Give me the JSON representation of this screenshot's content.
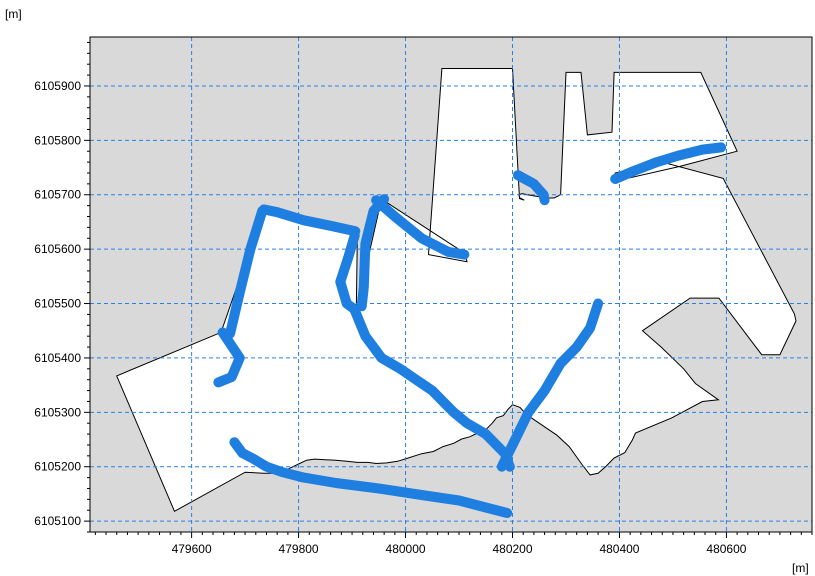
{
  "chart_data": {
    "type": "map",
    "x_unit": "[m]",
    "y_unit": "[m]",
    "xlim": [
      479410,
      480760
    ],
    "ylim": [
      6105080,
      6105990
    ],
    "x_ticks": [
      479600,
      479800,
      480000,
      480200,
      480400,
      480600
    ],
    "y_ticks": [
      6105100,
      6105200,
      6105300,
      6105400,
      6105500,
      6105600,
      6105700,
      6105800,
      6105900
    ],
    "x_minor_step": 20,
    "y_minor_step": 20,
    "grid": true,
    "colors": {
      "land": "#d9d9d9",
      "water": "#ffffff",
      "highlight": "#1e7fe0",
      "grid": "#2a7fe6",
      "outline": "#000000"
    },
    "water_polygon": [
      [
        479460,
        6105367
      ],
      [
        479655,
        6105447
      ],
      [
        479735,
        6105673
      ],
      [
        479910,
        6105635
      ],
      [
        479908,
        6105488
      ],
      [
        479955,
        6105692
      ],
      [
        480110,
        6105593
      ],
      [
        480115,
        6105577
      ],
      [
        480043,
        6105590
      ],
      [
        480068,
        6105932
      ],
      [
        480200,
        6105932
      ],
      [
        480213,
        6105693
      ],
      [
        480222,
        6105690
      ],
      [
        480213,
        6105695
      ],
      [
        480212,
        6105700
      ],
      [
        480218,
        6105702
      ],
      [
        480262,
        6105694
      ],
      [
        480278,
        6105694
      ],
      [
        480290,
        6105700
      ],
      [
        480300,
        6105925
      ],
      [
        480328,
        6105925
      ],
      [
        480340,
        6105810
      ],
      [
        480386,
        6105815
      ],
      [
        480390,
        6105925
      ],
      [
        480552,
        6105925
      ],
      [
        480620,
        6105780
      ],
      [
        480512,
        6105752
      ],
      [
        480392,
        6105725
      ],
      [
        480392,
        6105740
      ],
      [
        480480,
        6105760
      ],
      [
        480594,
        6105730
      ],
      [
        480727,
        6105481
      ],
      [
        480730,
        6105468
      ],
      [
        480700,
        6105406
      ],
      [
        480666,
        6105406
      ],
      [
        480586,
        6105510
      ],
      [
        480532,
        6105510
      ],
      [
        480443,
        6105450
      ],
      [
        480478,
        6105420
      ],
      [
        480520,
        6105380
      ],
      [
        480542,
        6105353
      ],
      [
        480585,
        6105323
      ],
      [
        480555,
        6105320
      ],
      [
        480498,
        6105290
      ],
      [
        480430,
        6105262
      ],
      [
        480424,
        6105249
      ],
      [
        480410,
        6105226
      ],
      [
        480390,
        6105216
      ],
      [
        480374,
        6105200
      ],
      [
        480360,
        6105188
      ],
      [
        480345,
        6105185
      ],
      [
        480330,
        6105204
      ],
      [
        480306,
        6105237
      ],
      [
        480283,
        6105258
      ],
      [
        480250,
        6105280
      ],
      [
        480226,
        6105296
      ],
      [
        480214,
        6105309
      ],
      [
        480200,
        6105314
      ],
      [
        480192,
        6105306
      ],
      [
        480183,
        6105294
      ],
      [
        480170,
        6105290
      ],
      [
        480162,
        6105280
      ],
      [
        480150,
        6105268
      ],
      [
        480135,
        6105262
      ],
      [
        480120,
        6105255
      ],
      [
        480105,
        6105251
      ],
      [
        480090,
        6105243
      ],
      [
        480070,
        6105237
      ],
      [
        480052,
        6105228
      ],
      [
        480030,
        6105224
      ],
      [
        480005,
        6105216
      ],
      [
        479985,
        6105210
      ],
      [
        479965,
        6105207
      ],
      [
        479945,
        6105206
      ],
      [
        479930,
        6105208
      ],
      [
        479910,
        6105208
      ],
      [
        479890,
        6105210
      ],
      [
        479870,
        6105212
      ],
      [
        479850,
        6105213
      ],
      [
        479830,
        6105214
      ],
      [
        479815,
        6105212
      ],
      [
        479800,
        6105205
      ],
      [
        479785,
        6105198
      ],
      [
        479768,
        6105190
      ],
      [
        479750,
        6105188
      ],
      [
        479735,
        6105188
      ],
      [
        479700,
        6105190
      ],
      [
        479568,
        6105118
      ]
    ],
    "highlight_paths": [
      [
        [
          479735,
          6105673
        ],
        [
          479760,
          6105668
        ],
        [
          479810,
          6105653
        ],
        [
          479860,
          6105643
        ],
        [
          479906,
          6105633
        ]
      ],
      [
        [
          479905,
          6105625
        ],
        [
          479893,
          6105585
        ],
        [
          479878,
          6105540
        ],
        [
          479890,
          6105500
        ],
        [
          479904,
          6105490
        ]
      ],
      [
        [
          479945,
          6105690
        ],
        [
          479980,
          6105660
        ],
        [
          480030,
          6105620
        ],
        [
          480080,
          6105595
        ],
        [
          480110,
          6105590
        ]
      ],
      [
        [
          479658,
          6105447
        ],
        [
          479690,
          6105400
        ],
        [
          479675,
          6105365
        ],
        [
          479650,
          6105355
        ]
      ],
      [
        [
          479732,
          6105670
        ],
        [
          479710,
          6105600
        ],
        [
          479690,
          6105520
        ],
        [
          479672,
          6105445
        ]
      ],
      [
        [
          479960,
          6105692
        ],
        [
          479940,
          6105670
        ],
        [
          479925,
          6105610
        ],
        [
          479922,
          6105530
        ],
        [
          479918,
          6105495
        ]
      ],
      [
        [
          479905,
          6105488
        ],
        [
          479925,
          6105440
        ],
        [
          479955,
          6105400
        ],
        [
          479990,
          6105380
        ],
        [
          480020,
          6105360
        ],
        [
          480050,
          6105340
        ],
        [
          480070,
          6105320
        ],
        [
          480090,
          6105300
        ],
        [
          480115,
          6105280
        ],
        [
          480150,
          6105260
        ],
        [
          480185,
          6105225
        ],
        [
          480195,
          6105200
        ]
      ],
      [
        [
          480180,
          6105200
        ],
        [
          480205,
          6105250
        ],
        [
          480230,
          6105300
        ],
        [
          480260,
          6105340
        ],
        [
          480290,
          6105390
        ],
        [
          480320,
          6105420
        ],
        [
          480345,
          6105455
        ],
        [
          480360,
          6105500
        ]
      ],
      [
        [
          480210,
          6105736
        ],
        [
          480240,
          6105720
        ],
        [
          480258,
          6105700
        ],
        [
          480260,
          6105690
        ]
      ],
      [
        [
          480392,
          6105729
        ],
        [
          480425,
          6105743
        ],
        [
          480470,
          6105760
        ],
        [
          480510,
          6105772
        ],
        [
          480555,
          6105783
        ],
        [
          480590,
          6105787
        ]
      ],
      [
        [
          479680,
          6105245
        ],
        [
          479695,
          6105225
        ],
        [
          479715,
          6105215
        ],
        [
          479740,
          6105200
        ],
        [
          479770,
          6105190
        ],
        [
          479810,
          6105180
        ],
        [
          479870,
          6105170
        ],
        [
          479950,
          6105160
        ],
        [
          480030,
          6105148
        ],
        [
          480100,
          6105138
        ],
        [
          480150,
          6105125
        ],
        [
          480190,
          6105115
        ]
      ]
    ]
  }
}
